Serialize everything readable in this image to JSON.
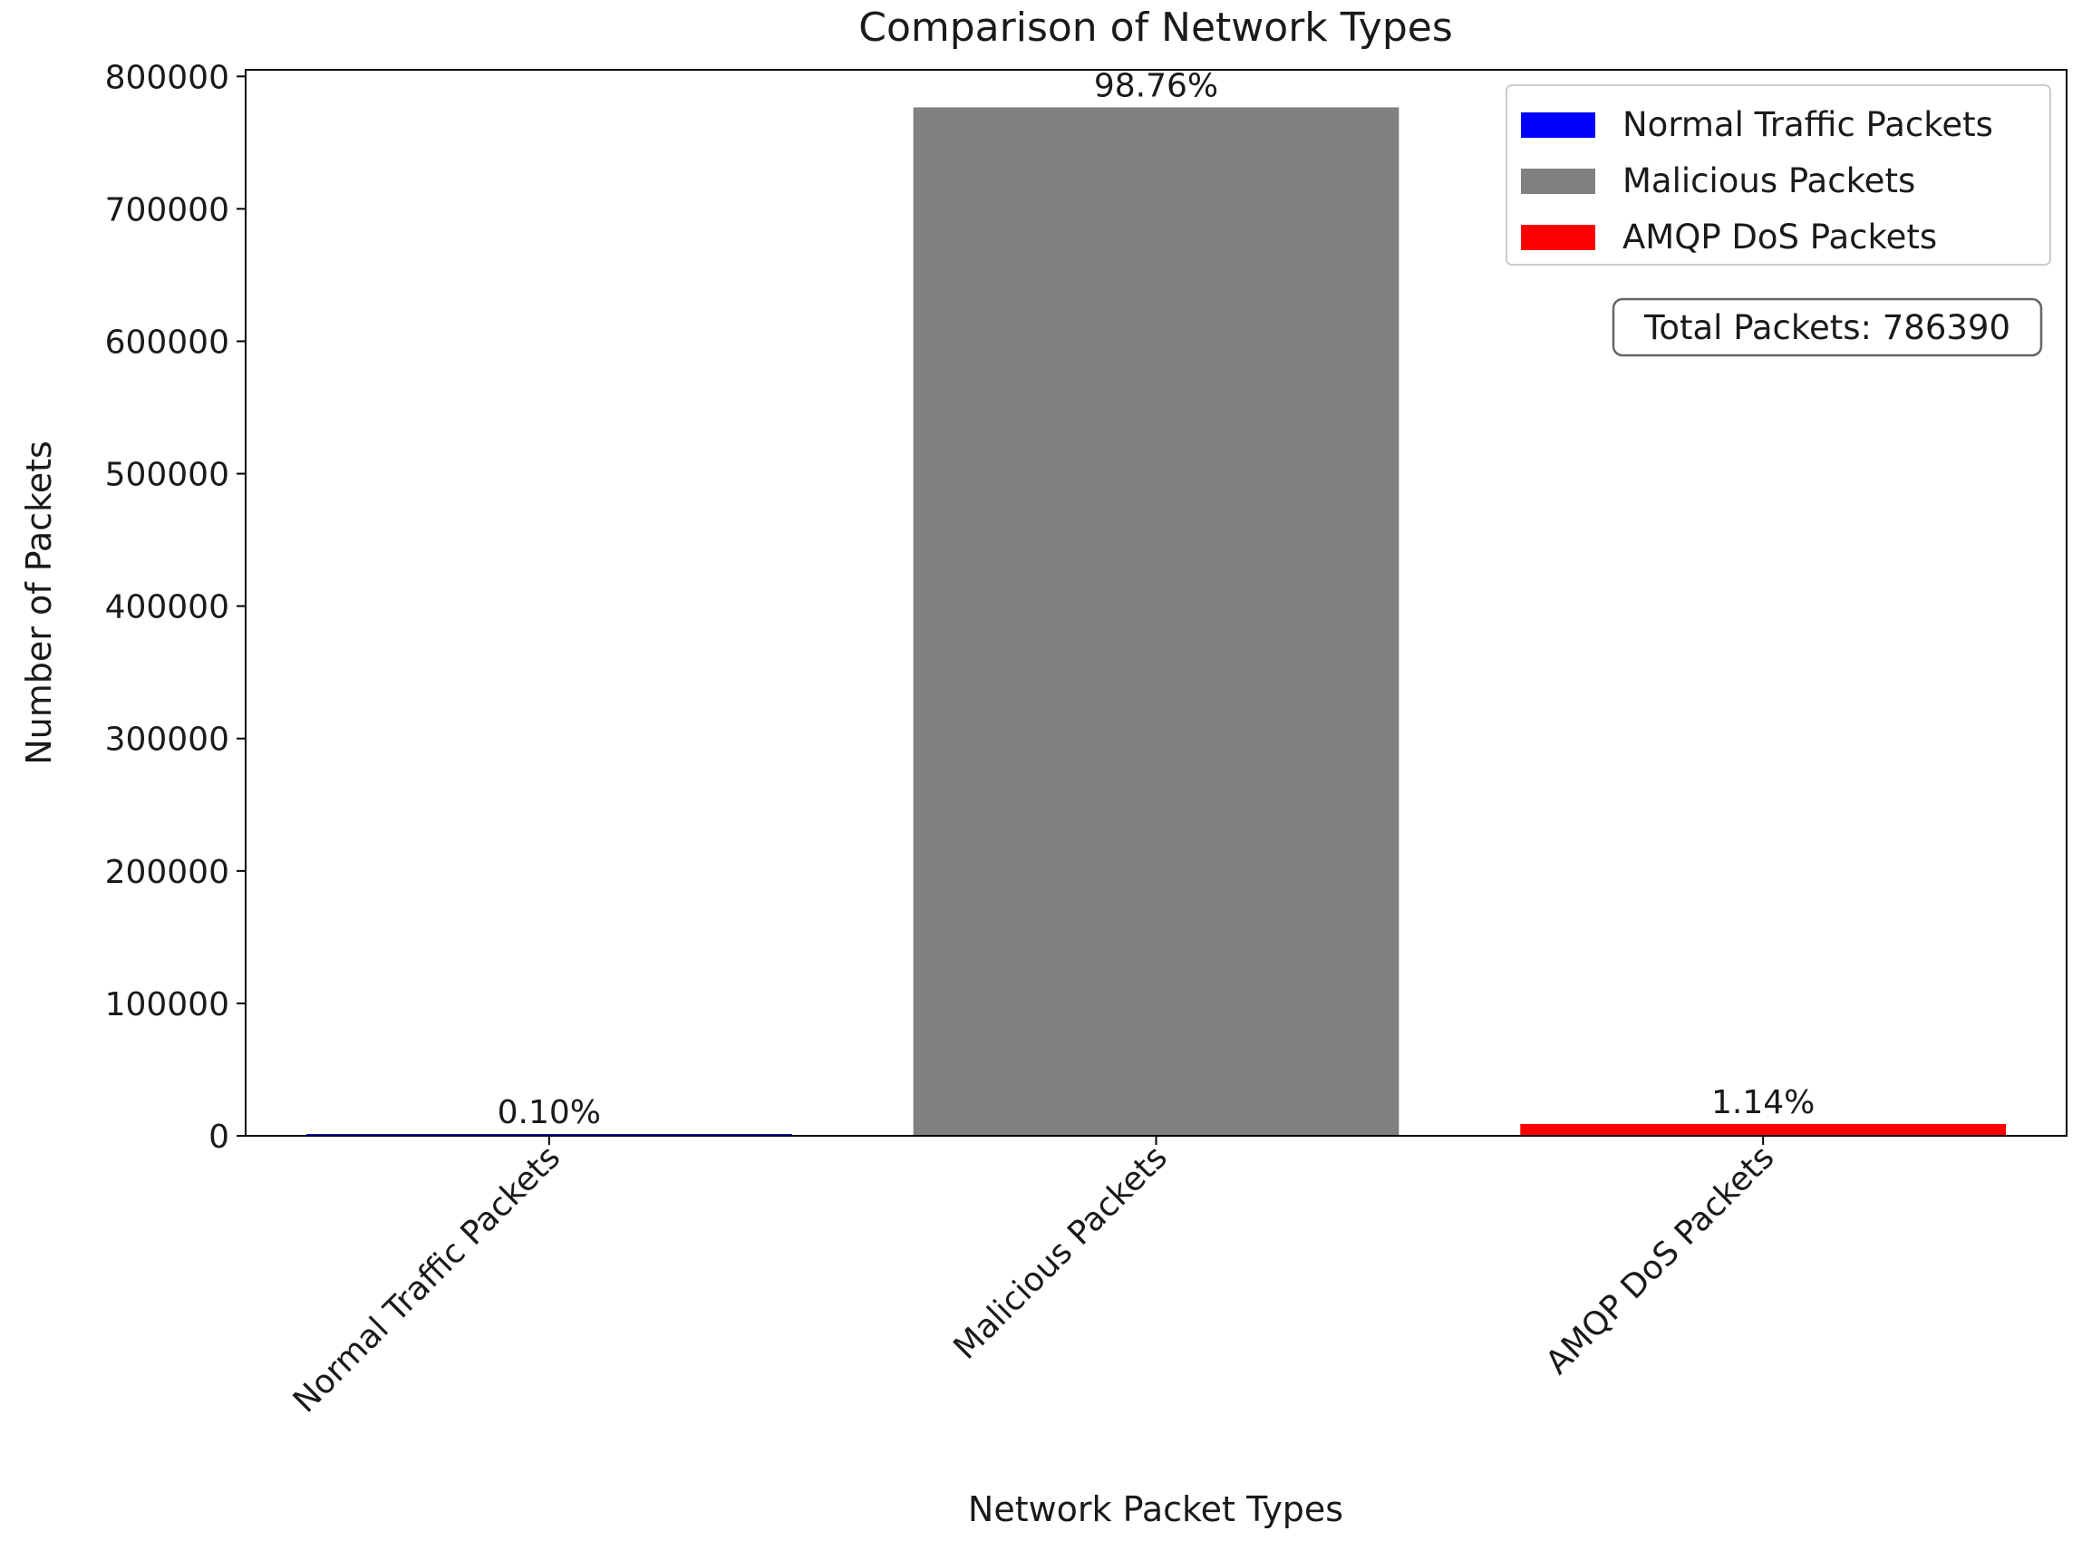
{
  "chart_data": {
    "type": "bar",
    "title": "Comparison of Network Types",
    "xlabel": "Network Packet Types",
    "ylabel": "Number of Packets",
    "categories": [
      "Normal Traffic Packets",
      "Malicious Packets",
      "AMQP DoS Packets"
    ],
    "values": [
      786,
      776649,
      8955
    ],
    "bar_labels": [
      "0.10%",
      "98.76%",
      "1.14%"
    ],
    "colors": [
      "#0000ff",
      "#808080",
      "#ff0000"
    ],
    "ylim": [
      0,
      805000
    ],
    "yticks": [
      0,
      100000,
      200000,
      300000,
      400000,
      500000,
      600000,
      700000,
      800000
    ],
    "ytick_labels": [
      "0",
      "100000",
      "200000",
      "300000",
      "400000",
      "500000",
      "600000",
      "700000",
      "800000"
    ],
    "legend": {
      "placement": "top-right",
      "entries": [
        {
          "label": "Normal Traffic Packets",
          "color": "#0000ff"
        },
        {
          "label": "Malicious Packets",
          "color": "#808080"
        },
        {
          "label": "AMQP DoS Packets",
          "color": "#ff0000"
        }
      ]
    },
    "annotation": "Total Packets: 786390",
    "grid": false
  }
}
